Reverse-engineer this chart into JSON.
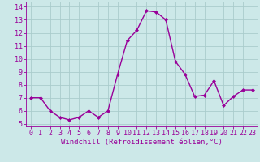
{
  "x": [
    0,
    1,
    2,
    3,
    4,
    5,
    6,
    7,
    8,
    9,
    10,
    11,
    12,
    13,
    14,
    15,
    16,
    17,
    18,
    19,
    20,
    21,
    22,
    23
  ],
  "y": [
    7.0,
    7.0,
    6.0,
    5.5,
    5.3,
    5.5,
    6.0,
    5.5,
    6.0,
    8.8,
    11.4,
    12.2,
    13.7,
    13.6,
    13.0,
    9.8,
    8.8,
    7.1,
    7.2,
    8.3,
    6.4,
    7.1,
    7.6,
    7.6
  ],
  "line_color": "#990099",
  "marker": "D",
  "marker_size": 2.0,
  "bg_color": "#cce8e8",
  "grid_color": "#aacccc",
  "xlabel": "Windchill (Refroidissement éolien,°C)",
  "xlim": [
    -0.5,
    23.5
  ],
  "ylim": [
    4.8,
    14.4
  ],
  "yticks": [
    5,
    6,
    7,
    8,
    9,
    10,
    11,
    12,
    13,
    14
  ],
  "xticks": [
    0,
    1,
    2,
    3,
    4,
    5,
    6,
    7,
    8,
    9,
    10,
    11,
    12,
    13,
    14,
    15,
    16,
    17,
    18,
    19,
    20,
    21,
    22,
    23
  ],
  "label_fontsize": 6.5,
  "tick_fontsize": 6.0,
  "linewidth": 1.0
}
